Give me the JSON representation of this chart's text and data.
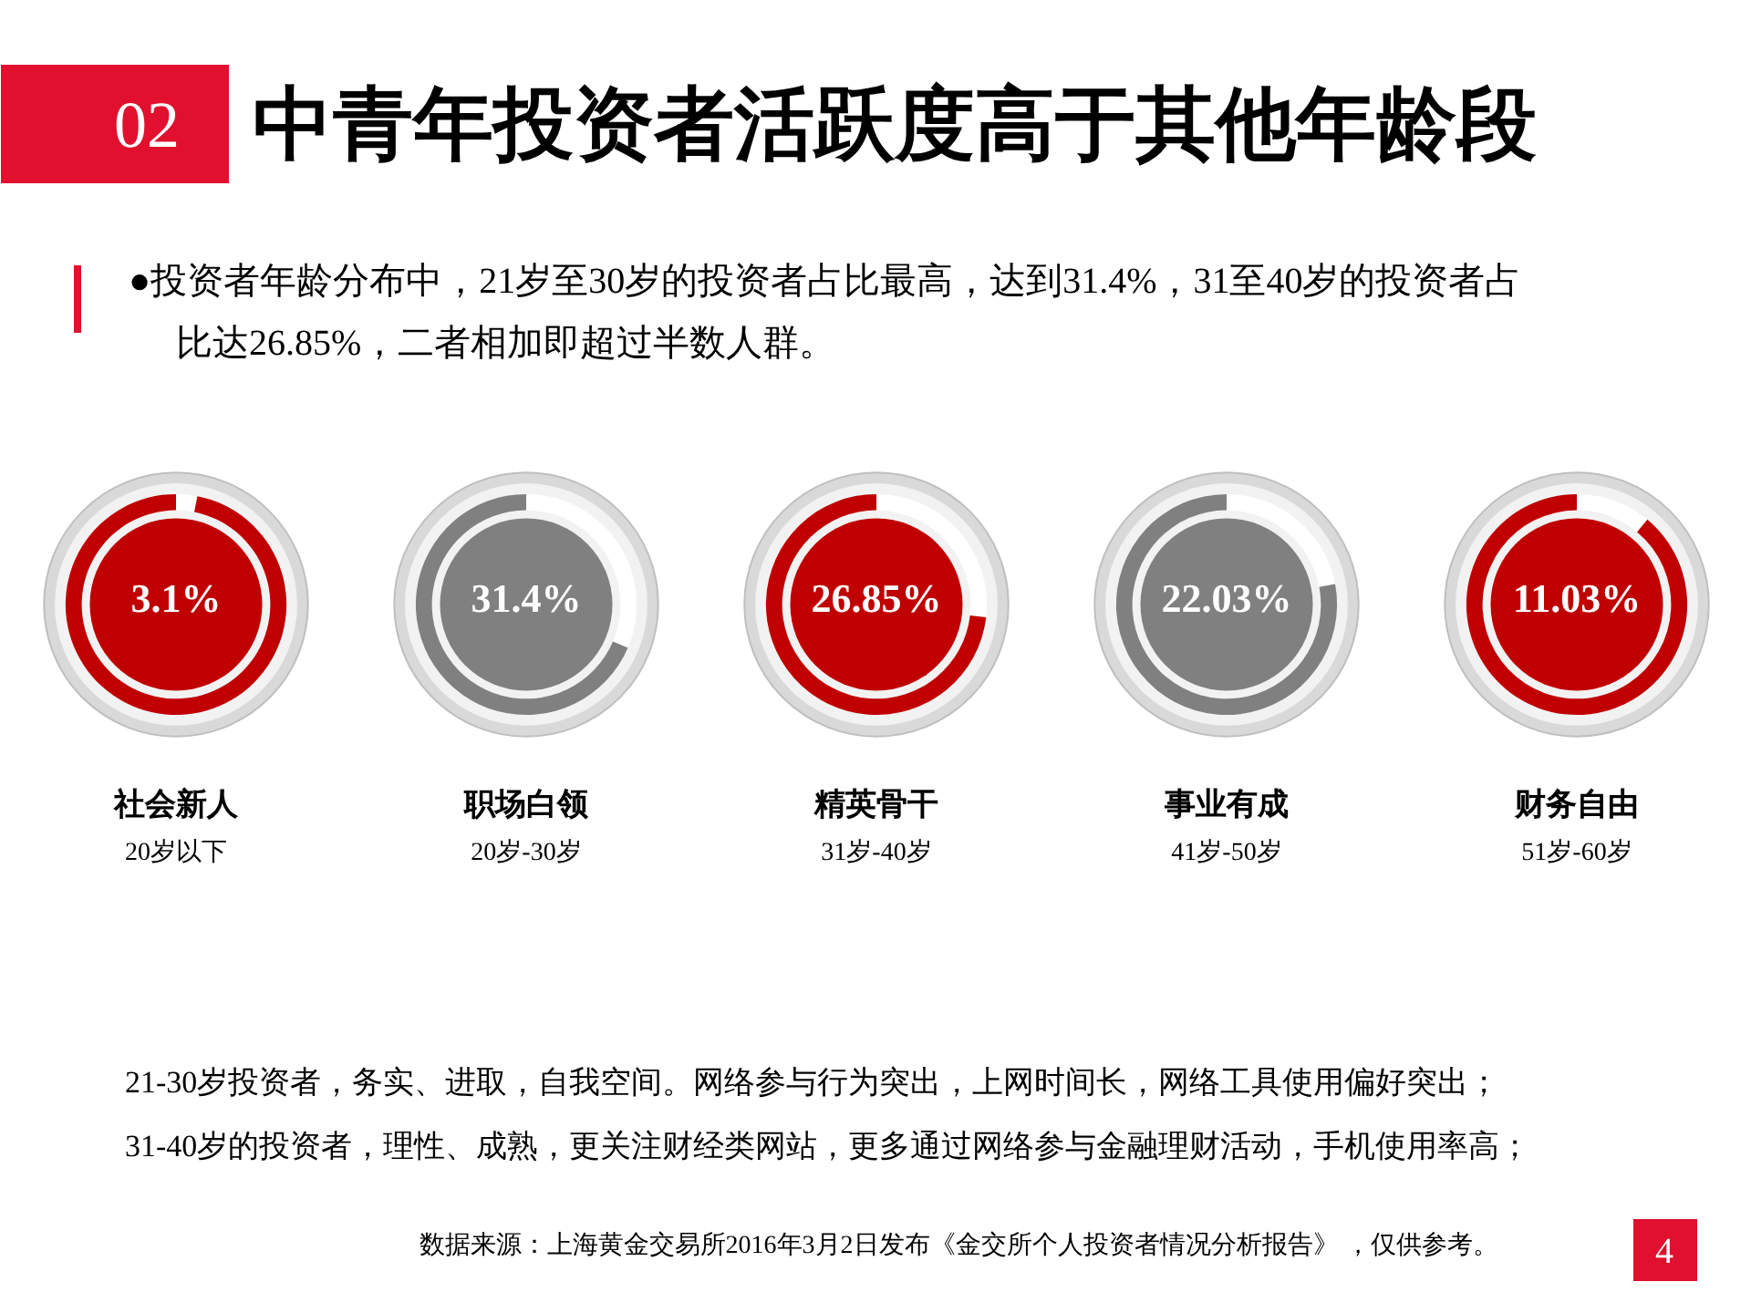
{
  "chart_data": [
    {
      "type": "other",
      "title": "中青年投资者活跃度高于其他年龄段",
      "annotations": [
        "02",
        "●投资者年龄分布中，21岁至30岁的投资者占比最高，达到31.4%，31至40岁的投资者占比达26.85%，二者相加即超过半数人群。"
      ]
    },
    {
      "type": "donut",
      "title": "社会新人",
      "subtitle": "20岁以下",
      "categories": [
        null,
        null
      ],
      "values": [
        3.1,
        96.9
      ],
      "colors": [
        "#ffffff",
        "#c00000"
      ],
      "value_labels": [
        "3.1%",
        null
      ]
    },
    {
      "type": "donut",
      "title": "职场白领",
      "subtitle": "20岁-30岁",
      "categories": [
        null,
        null
      ],
      "values": [
        31.4,
        68.6
      ],
      "colors": [
        "#ffffff",
        "#808080"
      ],
      "value_labels": [
        "31.4%",
        null
      ]
    },
    {
      "type": "donut",
      "title": "精英骨干",
      "subtitle": "31岁-40岁",
      "categories": [
        null,
        null
      ],
      "values": [
        26.85,
        73.15
      ],
      "colors": [
        "#ffffff",
        "#c00000"
      ],
      "value_labels": [
        "26.85%",
        null
      ]
    },
    {
      "type": "donut",
      "title": "事业有成",
      "subtitle": "41岁-50岁",
      "categories": [
        null,
        null
      ],
      "values": [
        22.03,
        77.97
      ],
      "colors": [
        "#ffffff",
        "#808080"
      ],
      "value_labels": [
        "22.03%",
        null
      ]
    },
    {
      "type": "donut",
      "title": "财务自由",
      "subtitle": "51岁-60岁",
      "categories": [
        null,
        null
      ],
      "values": [
        11.03,
        88.97
      ],
      "colors": [
        "#ffffff",
        "#c00000"
      ],
      "value_labels": [
        "11.03%",
        null
      ]
    },
    {
      "type": "other",
      "annotations": [
        "21-30岁投资者，务实、进取，自我空间。网络参与行为突出，上网时间长，网络工具使用偏好突出；",
        "31-40岁的投资者，理性、成熟，更关注财经类网站，更多通过网络参与金融理财活动，手机使用率高；",
        "数据来源：上海黄金交易所2016年3月2日发布《金交所个人投资者情况分析报告》 ，仅供参考。",
        "4"
      ]
    }
  ]
}
